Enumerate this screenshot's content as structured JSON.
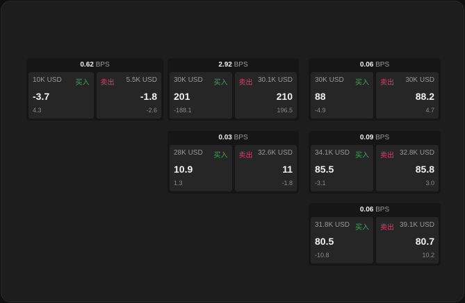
{
  "labels": {
    "buy": "买入",
    "sell": "卖出",
    "unit": "BPS"
  },
  "colors": {
    "buy": "#3aa55a",
    "sell": "#d8406a"
  },
  "cards": [
    {
      "spread": "0.62",
      "bid": {
        "size": "10K USD",
        "price": "-3.7",
        "change": "4.3"
      },
      "ask": {
        "size": "5.5K USD",
        "price": "-1.8",
        "change": "-2.6"
      }
    },
    {
      "spread": "2.92",
      "bid": {
        "size": "30K USD",
        "price": "201",
        "change": "-188.1"
      },
      "ask": {
        "size": "30.1K USD",
        "price": "210",
        "change": "196.5"
      }
    },
    {
      "spread": "0.06",
      "bid": {
        "size": "30K USD",
        "price": "88",
        "change": "-4.9"
      },
      "ask": {
        "size": "30K USD",
        "price": "88.2",
        "change": "4.7"
      }
    },
    {
      "spread": "0.03",
      "bid": {
        "size": "28K USD",
        "price": "10.9",
        "change": "1.3"
      },
      "ask": {
        "size": "32.6K USD",
        "price": "11",
        "change": "-1.8"
      }
    },
    {
      "spread": "0.09",
      "bid": {
        "size": "34.1K USD",
        "price": "85.5",
        "change": "-3.1"
      },
      "ask": {
        "size": "32.8K USD",
        "price": "85.8",
        "change": "3.0"
      }
    },
    {
      "spread": "0.06",
      "bid": {
        "size": "31.8K USD",
        "price": "80.5",
        "change": "-10.8"
      },
      "ask": {
        "size": "39.1K USD",
        "price": "80.7",
        "change": "10.2"
      }
    }
  ]
}
